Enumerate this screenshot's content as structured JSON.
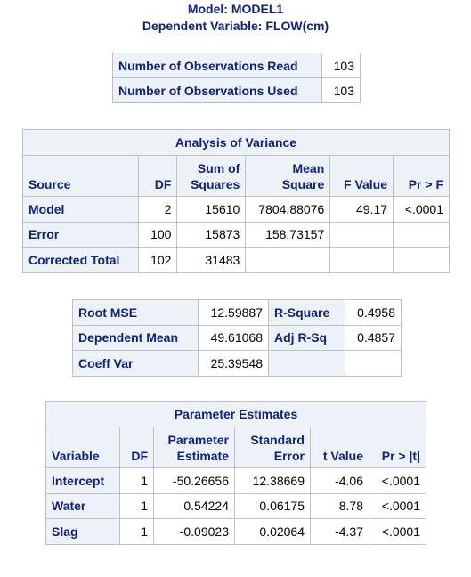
{
  "header": {
    "model": "Model: MODEL1",
    "dependent": "Dependent Variable: FLOW(cm)"
  },
  "observations": {
    "rows": [
      {
        "label": "Number of Observations Read",
        "value": "103"
      },
      {
        "label": "Number of Observations Used",
        "value": "103"
      }
    ]
  },
  "anova": {
    "title": "Analysis of Variance",
    "columns": {
      "source": "Source",
      "df": "DF",
      "ss_1": "Sum of",
      "ss_2": "Squares",
      "ms_1": "Mean",
      "ms_2": "Square",
      "f": "F Value",
      "p": "Pr > F"
    },
    "rows": [
      {
        "source": "Model",
        "df": "2",
        "ss": "15610",
        "ms": "7804.88076",
        "f": "49.17",
        "p": "<.0001"
      },
      {
        "source": "Error",
        "df": "100",
        "ss": "15873",
        "ms": "158.73157",
        "f": "",
        "p": ""
      },
      {
        "source": "Corrected Total",
        "df": "102",
        "ss": "31483",
        "ms": "",
        "f": "",
        "p": ""
      }
    ]
  },
  "fit": {
    "rows": [
      {
        "label1": "Root MSE",
        "value1": "12.59887",
        "label2": "R-Square",
        "value2": "0.4958"
      },
      {
        "label1": "Dependent Mean",
        "value1": "49.61068",
        "label2": "Adj R-Sq",
        "value2": "0.4857"
      },
      {
        "label1": "Coeff Var",
        "value1": "25.39548",
        "label2": "",
        "value2": ""
      }
    ]
  },
  "params": {
    "title": "Parameter Estimates",
    "columns": {
      "variable": "Variable",
      "df": "DF",
      "est_1": "Parameter",
      "est_2": "Estimate",
      "se_1": "Standard",
      "se_2": "Error",
      "t": "t Value",
      "p": "Pr > |t|"
    },
    "rows": [
      {
        "variable": "Intercept",
        "df": "1",
        "estimate": "-50.26656",
        "se": "12.38669",
        "t": "-4.06",
        "p": "<.0001"
      },
      {
        "variable": "Water",
        "df": "1",
        "estimate": "0.54224",
        "se": "0.06175",
        "t": "8.78",
        "p": "<.0001"
      },
      {
        "variable": "Slag",
        "df": "1",
        "estimate": "-0.09023",
        "se": "0.02064",
        "t": "-4.37",
        "p": "<.0001"
      }
    ]
  }
}
